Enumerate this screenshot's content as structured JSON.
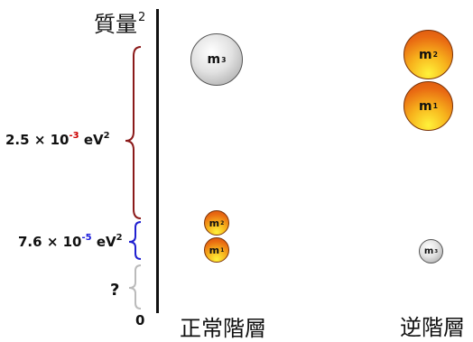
{
  "axis": {
    "title": "質量",
    "title_power": "2",
    "zero_label": "0"
  },
  "gaps": {
    "large": {
      "mantissa": "2.5",
      "times": "×",
      "base": "10",
      "exponent": "-3",
      "exponent_color": "#cc0000",
      "unit": "eV",
      "unit_power": "2",
      "brace_color": "#8b1a1a"
    },
    "small": {
      "mantissa": "7.6",
      "times": "×",
      "base": "10",
      "exponent": "-5",
      "exponent_color": "#1a1adb",
      "unit": "eV",
      "unit_power": "2",
      "brace_color": "#2020d0"
    },
    "unknown": {
      "label": "?",
      "brace_color": "#bbbbbb"
    }
  },
  "orderings": {
    "normal": {
      "title": "正常階層",
      "states": [
        {
          "letter": "m",
          "index": "3",
          "color": "gray"
        },
        {
          "letter": "m",
          "index": "2",
          "color": "warm"
        },
        {
          "letter": "m",
          "index": "1",
          "color": "warm"
        }
      ]
    },
    "inverted": {
      "title": "逆階層",
      "states": [
        {
          "letter": "m",
          "index": "2",
          "color": "warm"
        },
        {
          "letter": "m",
          "index": "1",
          "color": "warm"
        },
        {
          "letter": "m",
          "index": "3",
          "color": "gray"
        }
      ]
    }
  }
}
